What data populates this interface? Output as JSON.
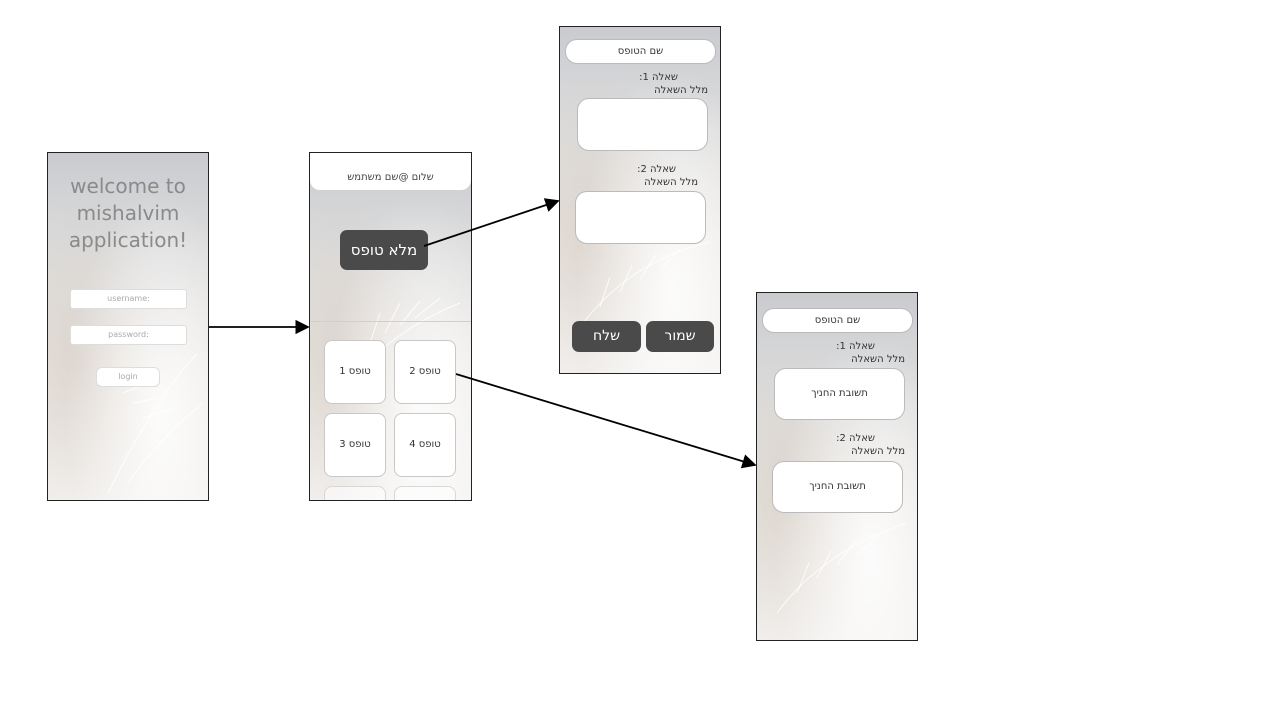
{
  "login_screen": {
    "welcome": [
      "welcome to",
      "mishalvim",
      "application!"
    ],
    "username_placeholder": "username:",
    "password_placeholder": "password:",
    "login_label": "login"
  },
  "home_screen": {
    "greeting": "שלום @שם משתמש",
    "fill_form_label": "מלא טופס",
    "forms": [
      "טופס 1",
      "טופס 2",
      "טופס 3",
      "טופס 4"
    ]
  },
  "fill_form_screen": {
    "form_name": "שם הטופס",
    "questions": [
      {
        "label": "שאלה 1:",
        "text": "מלל השאלה"
      },
      {
        "label": "שאלה 2:",
        "text": "מלל השאלה"
      }
    ],
    "send_label": "שלח",
    "save_label": "שמור"
  },
  "view_form_screen": {
    "form_name": "שם הטופס",
    "questions": [
      {
        "label": "שאלה 1:",
        "text": "מלל השאלה",
        "answer": "תשובת החניך"
      },
      {
        "label": "שאלה 2:",
        "text": "מלל השאלה",
        "answer": "תשובת החניך"
      }
    ]
  }
}
